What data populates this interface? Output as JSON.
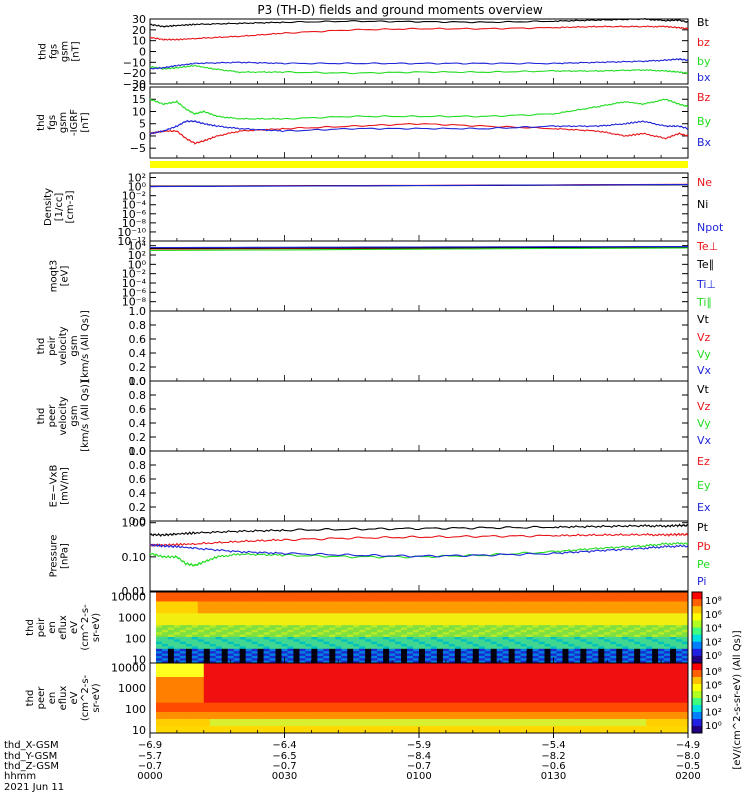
{
  "title": "P3 (TH-D) fields and ground moments overview",
  "colors": {
    "black": "#000000",
    "red": "#e8161a",
    "green": "#22dd22",
    "blue": "#1f24d8",
    "yellow": "#ffff00"
  },
  "chart_data": [
    {
      "type": "line",
      "name": "fgs-gsm",
      "ylabel_lines": [
        "thd",
        "fgs",
        "gsm",
        "[nT]"
      ],
      "ylim": [
        -30,
        30
      ],
      "yticks": [
        {
          "v": 30,
          "label": "30"
        },
        {
          "v": 20,
          "label": "20"
        },
        {
          "v": 10,
          "label": "10"
        },
        {
          "v": 0,
          "label": "0"
        },
        {
          "v": -10,
          "label": "−10"
        },
        {
          "v": -20,
          "label": "−20"
        },
        {
          "v": -30,
          "label": "−30"
        }
      ],
      "series": [
        {
          "name": "Bt",
          "color": "black",
          "x": [
            0,
            3,
            6,
            10,
            20,
            30,
            45,
            60,
            75,
            90,
            100,
            110,
            115,
            118,
            120
          ],
          "y": [
            25,
            23,
            24,
            25,
            26,
            27,
            28,
            27.5,
            27,
            28,
            29,
            30,
            28.5,
            29,
            27
          ]
        },
        {
          "name": "bz",
          "color": "red",
          "x": [
            0,
            3,
            6,
            10,
            20,
            30,
            45,
            60,
            75,
            90,
            100,
            110,
            115,
            118,
            120
          ],
          "y": [
            13,
            11,
            11,
            12,
            14,
            17,
            20,
            21,
            21,
            22,
            23,
            23,
            23,
            22,
            21
          ]
        },
        {
          "name": "by",
          "color": "green",
          "x": [
            0,
            3,
            6,
            10,
            14,
            20,
            30,
            45,
            60,
            75,
            90,
            100,
            110,
            115,
            118,
            120
          ],
          "y": [
            -14,
            -16,
            -15,
            -13,
            -16,
            -19,
            -19,
            -20,
            -19,
            -19,
            -18,
            -18,
            -17,
            -18,
            -19,
            -20
          ]
        },
        {
          "name": "bx",
          "color": "blue",
          "x": [
            0,
            3,
            6,
            10,
            20,
            30,
            45,
            60,
            75,
            90,
            100,
            110,
            115,
            118,
            120
          ],
          "y": [
            -16,
            -15,
            -13,
            -11,
            -10,
            -11,
            -11,
            -11,
            -11,
            -11,
            -10,
            -9,
            -8,
            -7,
            -8
          ]
        }
      ]
    },
    {
      "type": "line",
      "name": "fgs-gsm-igrf",
      "ylabel_lines": [
        "thd",
        "fgs",
        "gsm",
        "-IGRF",
        "[nT]"
      ],
      "ylim": [
        -9,
        20
      ],
      "yticks": [
        {
          "v": 20,
          "label": "20"
        },
        {
          "v": 15,
          "label": "15"
        },
        {
          "v": 10,
          "label": "10"
        },
        {
          "v": 5,
          "label": "5"
        },
        {
          "v": 0,
          "label": "0"
        },
        {
          "v": -5,
          "label": "−5"
        }
      ],
      "series": [
        {
          "name": "Bz",
          "color": "red",
          "x": [
            0,
            3,
            6,
            8,
            10,
            12,
            15,
            20,
            30,
            45,
            60,
            75,
            90,
            100,
            106,
            110,
            115,
            118,
            120
          ],
          "y": [
            1,
            2,
            2,
            -1,
            -3,
            -2,
            0,
            2,
            3,
            4,
            5,
            4,
            3,
            2,
            0,
            1,
            -1,
            1,
            0
          ]
        },
        {
          "name": "By",
          "color": "green",
          "x": [
            0,
            3,
            6,
            8,
            10,
            12,
            15,
            20,
            30,
            45,
            60,
            75,
            90,
            100,
            106,
            110,
            115,
            118,
            120
          ],
          "y": [
            15,
            13,
            14,
            11,
            9,
            10,
            8,
            7,
            7,
            8,
            8,
            8,
            9,
            12,
            14,
            13,
            15,
            13,
            12
          ]
        },
        {
          "name": "Bx",
          "color": "blue",
          "x": [
            0,
            3,
            6,
            8,
            10,
            12,
            15,
            20,
            30,
            45,
            60,
            75,
            90,
            100,
            106,
            110,
            115,
            118,
            120
          ],
          "y": [
            1,
            2,
            4,
            6,
            6,
            5,
            4,
            3,
            2,
            3,
            3,
            3,
            4,
            4,
            5,
            6,
            4,
            4,
            3
          ]
        }
      ]
    },
    {
      "type": "line",
      "name": "density",
      "ylabel_lines": [
        "Density",
        "[1/cc]",
        "[cm-3]"
      ],
      "scale": "log",
      "ylim_exp": [
        -12,
        3
      ],
      "yticks": [
        {
          "e": 2,
          "label": "10²"
        },
        {
          "e": 0,
          "label": "10⁰"
        },
        {
          "e": -2,
          "label": "10⁻²"
        },
        {
          "e": -4,
          "label": "10⁻⁴"
        },
        {
          "e": -6,
          "label": "10⁻⁶"
        },
        {
          "e": -8,
          "label": "10⁻⁸"
        },
        {
          "e": -10,
          "label": "10⁻¹⁰"
        },
        {
          "e": -12,
          "label": "10⁻¹²"
        }
      ],
      "series": [
        {
          "name": "Ne",
          "color": "red",
          "x": [
            0,
            120
          ],
          "y_exp": [
            0.1,
            0.5
          ]
        },
        {
          "name": "Ni",
          "color": "black",
          "x": [
            0,
            120
          ],
          "y_exp": [
            0.05,
            0.4
          ]
        },
        {
          "name": "Npot",
          "color": "blue",
          "x": [
            0,
            120
          ],
          "y_exp": [
            0.0,
            0.45
          ]
        }
      ]
    },
    {
      "type": "line",
      "name": "temperature",
      "ylabel_lines": [
        "moqt3",
        "[eV]"
      ],
      "scale": "log",
      "ylim_exp": [
        -10,
        5
      ],
      "yticks": [
        {
          "e": 4,
          "label": "10⁴"
        },
        {
          "e": 2,
          "label": "10²"
        },
        {
          "e": 0,
          "label": "10⁰"
        },
        {
          "e": -2,
          "label": "10⁻²"
        },
        {
          "e": -4,
          "label": "10⁻⁴"
        },
        {
          "e": -6,
          "label": "10⁻⁶"
        },
        {
          "e": -8,
          "label": "10⁻⁸"
        }
      ],
      "series": [
        {
          "name": "Te⊥",
          "color": "red",
          "x": [
            0,
            120
          ],
          "y_exp": [
            3.3,
            3.6
          ]
        },
        {
          "name": "Te∥",
          "color": "black",
          "x": [
            0,
            120
          ],
          "y_exp": [
            3.4,
            3.7
          ]
        },
        {
          "name": "Ti⊥",
          "color": "blue",
          "x": [
            0,
            120
          ],
          "y_exp": [
            3.6,
            3.8
          ]
        },
        {
          "name": "Ti∥",
          "color": "green",
          "x": [
            0,
            120
          ],
          "y_exp": [
            3.0,
            3.5
          ]
        }
      ]
    },
    {
      "type": "line",
      "name": "peir-velocity",
      "ylabel_lines": [
        "thd",
        "peir",
        "velocity",
        "gsm",
        "[km/s (All Qs)]"
      ],
      "ylim": [
        0,
        1
      ],
      "yticks": [
        {
          "v": 1,
          "label": "1.0"
        },
        {
          "v": 0.8,
          "label": "0.8"
        },
        {
          "v": 0.6,
          "label": "0.6"
        },
        {
          "v": 0.4,
          "label": "0.4"
        },
        {
          "v": 0.2,
          "label": "0.2"
        },
        {
          "v": 0,
          "label": "0.0"
        }
      ],
      "legend": [
        {
          "name": "Vt",
          "color": "black"
        },
        {
          "name": "Vz",
          "color": "red"
        },
        {
          "name": "Vy",
          "color": "green"
        },
        {
          "name": "Vx",
          "color": "blue"
        }
      ]
    },
    {
      "type": "line",
      "name": "peer-velocity",
      "ylabel_lines": [
        "thd",
        "peer",
        "velocity",
        "gsm",
        "[km/s (All Qs)]"
      ],
      "ylim": [
        0,
        1
      ],
      "yticks": [
        {
          "v": 1,
          "label": "1.0"
        },
        {
          "v": 0.8,
          "label": "0.8"
        },
        {
          "v": 0.6,
          "label": "0.6"
        },
        {
          "v": 0.4,
          "label": "0.4"
        },
        {
          "v": 0.2,
          "label": "0.2"
        },
        {
          "v": 0,
          "label": "0.0"
        }
      ],
      "legend": [
        {
          "name": "Vt",
          "color": "black"
        },
        {
          "name": "Vz",
          "color": "red"
        },
        {
          "name": "Vy",
          "color": "green"
        },
        {
          "name": "Vx",
          "color": "blue"
        }
      ]
    },
    {
      "type": "line",
      "name": "efield",
      "ylabel_lines": [
        "E=−VxB",
        "[mV/m]"
      ],
      "ylim": [
        0,
        1
      ],
      "yticks": [
        {
          "v": 1,
          "label": "1.0"
        },
        {
          "v": 0.8,
          "label": "0.8"
        },
        {
          "v": 0.6,
          "label": "0.6"
        },
        {
          "v": 0.4,
          "label": "0.4"
        },
        {
          "v": 0.2,
          "label": "0.2"
        },
        {
          "v": 0,
          "label": "0.0"
        }
      ],
      "legend": [
        {
          "name": "Ez",
          "color": "red"
        },
        {
          "name": "Ey",
          "color": "green"
        },
        {
          "name": "Ex",
          "color": "blue"
        }
      ]
    },
    {
      "type": "line",
      "name": "pressure",
      "ylabel_lines": [
        "Pressure",
        "[nPa]"
      ],
      "scale": "log",
      "ylim_exp": [
        -2,
        0.05
      ],
      "yticks": [
        {
          "e": 0,
          "label": "1.00"
        },
        {
          "e": -1,
          "label": "0.10"
        },
        {
          "e": -2,
          "label": "0.01"
        }
      ],
      "series": [
        {
          "name": "Pt",
          "color": "black",
          "x": [
            0,
            3,
            6,
            10,
            20,
            30,
            45,
            60,
            75,
            90,
            100,
            110,
            115,
            118,
            120
          ],
          "y_exp": [
            -0.35,
            -0.36,
            -0.33,
            -0.3,
            -0.25,
            -0.22,
            -0.19,
            -0.17,
            -0.15,
            -0.13,
            -0.11,
            -0.09,
            -0.1,
            -0.08,
            -0.08
          ]
        },
        {
          "name": "Pb",
          "color": "red",
          "x": [
            0,
            3,
            6,
            10,
            20,
            30,
            45,
            60,
            75,
            90,
            100,
            110,
            115,
            118,
            120
          ],
          "y_exp": [
            -0.65,
            -0.66,
            -0.64,
            -0.62,
            -0.55,
            -0.5,
            -0.45,
            -0.42,
            -0.4,
            -0.38,
            -0.36,
            -0.35,
            -0.36,
            -0.34,
            -0.35
          ]
        },
        {
          "name": "Pe",
          "color": "green",
          "x": [
            0,
            3,
            6,
            8,
            10,
            12,
            15,
            20,
            30,
            45,
            60,
            75,
            90,
            100,
            110,
            115,
            120
          ],
          "y_exp": [
            -0.9,
            -1.0,
            -1.0,
            -1.2,
            -1.25,
            -1.15,
            -1.0,
            -0.92,
            -0.95,
            -1.0,
            -1.0,
            -0.95,
            -0.85,
            -0.75,
            -0.68,
            -0.62,
            -0.6
          ]
        },
        {
          "name": "Pi",
          "color": "blue",
          "x": [
            0,
            3,
            6,
            10,
            20,
            30,
            45,
            60,
            75,
            90,
            100,
            110,
            115,
            120
          ],
          "y_exp": [
            -0.65,
            -0.68,
            -0.7,
            -0.75,
            -0.85,
            -0.9,
            -0.95,
            -0.98,
            -0.95,
            -0.9,
            -0.82,
            -0.75,
            -0.7,
            -0.68
          ]
        }
      ]
    },
    {
      "type": "heatmap",
      "name": "peir-energy-flux",
      "ylabel_lines": [
        "thd",
        "peir",
        "en",
        "eflux",
        "eV",
        "(cm^2-s-",
        "sr-eV)"
      ],
      "yticks": [
        {
          "v": 10000,
          "label": "10000"
        },
        {
          "v": 1000,
          "label": "1000"
        },
        {
          "v": 100,
          "label": "100"
        },
        {
          "v": 10,
          "label": "10"
        }
      ]
    },
    {
      "type": "heatmap",
      "name": "peer-energy-flux",
      "ylabel_lines": [
        "thd",
        "peer",
        "en",
        "eflux",
        "eV",
        "(cm^2-s-",
        "sr-eV)"
      ],
      "yticks": [
        {
          "v": 10000,
          "label": "10000"
        },
        {
          "v": 1000,
          "label": "1000"
        },
        {
          "v": 100,
          "label": "100"
        },
        {
          "v": 10,
          "label": "10"
        }
      ]
    }
  ],
  "colorbar": {
    "label": "[eV/(cm^2-s-sr-eV) (All Qs)]",
    "ticks_top": [
      {
        "label": "10⁸"
      },
      {
        "label": "10⁶"
      },
      {
        "label": "10⁴"
      },
      {
        "label": "10²"
      },
      {
        "label": "10⁰"
      }
    ],
    "ticks_bottom": [
      {
        "label": "10⁸"
      },
      {
        "label": "10⁶"
      },
      {
        "label": "10⁴"
      },
      {
        "label": "10²"
      },
      {
        "label": "10⁰"
      }
    ]
  },
  "xaxis": {
    "row_labels": [
      "thd_X-GSM",
      "thd_Y-GSM",
      "thd_Z-GSM",
      "hhmm",
      "2021 Jun 11"
    ],
    "ticks": [
      {
        "t": 0,
        "vals": [
          "−6.9",
          "−5.7",
          "−0.7",
          "0000"
        ]
      },
      {
        "t": 30,
        "vals": [
          "−6.4",
          "−6.5",
          "−0.7",
          "0030"
        ]
      },
      {
        "t": 60,
        "vals": [
          "−5.9",
          "−8.4",
          "−0.7",
          "0100"
        ]
      },
      {
        "t": 90,
        "vals": [
          "−5.4",
          "−8.2",
          "−0.6",
          "0130"
        ]
      },
      {
        "t": 120,
        "vals": [
          "−4.9",
          "−8.0",
          "−0.5",
          "0200"
        ]
      }
    ]
  }
}
